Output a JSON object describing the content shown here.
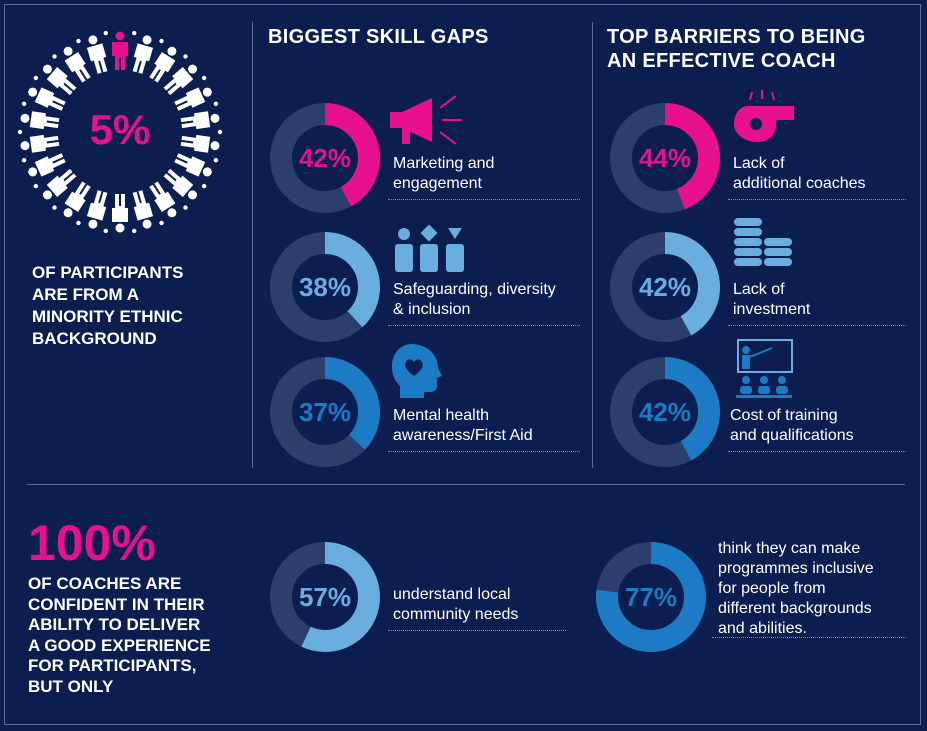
{
  "colors": {
    "background": "#0b1e4f",
    "track": "#2c3f6c",
    "magenta": "#e8118d",
    "light_blue": "#6aaee0",
    "mid_blue": "#1d7ac4"
  },
  "participants": {
    "stat": "5%",
    "caption_lines": [
      "OF PARTICIPANTS",
      "ARE FROM A",
      "MINORITY ETHNIC",
      "BACKGROUND"
    ]
  },
  "skill_gaps": {
    "heading": "BIGGEST SKILL GAPS",
    "items": [
      {
        "percent": "42%",
        "value": 42,
        "color": "#e8118d",
        "icon": "megaphone-icon",
        "label_lines": [
          "Marketing and",
          "engagement"
        ]
      },
      {
        "percent": "38%",
        "value": 38,
        "color": "#6aaee0",
        "icon": "diverse-people-icon",
        "label_lines": [
          "Safeguarding, diversity",
          "& inclusion"
        ]
      },
      {
        "percent": "37%",
        "value": 37,
        "color": "#1d7ac4",
        "icon": "head-heart-icon",
        "label_lines": [
          "Mental health",
          "awareness/First Aid"
        ]
      }
    ]
  },
  "barriers": {
    "heading_lines": [
      "TOP BARRIERS TO BEING",
      "AN EFFECTIVE COACH"
    ],
    "items": [
      {
        "percent": "44%",
        "value": 44,
        "color": "#e8118d",
        "icon": "whistle-icon",
        "label_lines": [
          "Lack of",
          "additional coaches"
        ]
      },
      {
        "percent": "42%",
        "value": 42,
        "color": "#6aaee0",
        "icon": "coin-stack-icon",
        "label_lines": [
          "Lack of",
          "investment"
        ]
      },
      {
        "percent": "42%",
        "value": 42,
        "color": "#1d7ac4",
        "icon": "classroom-icon",
        "label_lines": [
          "Cost of  training",
          "and qualifications"
        ]
      }
    ]
  },
  "coaches": {
    "stat": "100%",
    "caption_lines": [
      "OF COACHES ARE",
      "CONFIDENT IN THEIR",
      "ABILITY TO DELIVER",
      "A GOOD EXPERIENCE",
      "FOR PARTICIPANTS,",
      "BUT ONLY"
    ],
    "items": [
      {
        "percent": "57%",
        "value": 57,
        "color": "#6aaee0",
        "label_lines": [
          "understand local",
          "community needs"
        ]
      },
      {
        "percent": "77%",
        "value": 77,
        "color": "#1d7ac4",
        "label_lines": [
          "think they can make",
          "programmes inclusive",
          "for people from",
          "different backgrounds",
          "and abilities."
        ]
      }
    ]
  }
}
